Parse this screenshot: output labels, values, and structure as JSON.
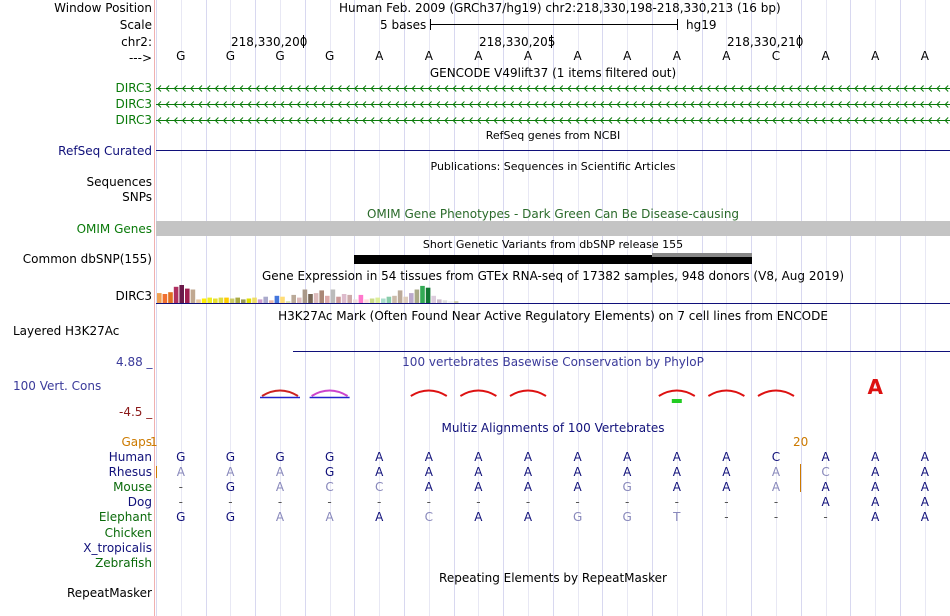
{
  "header": {
    "window_position_label": "Window Position",
    "window_position_value": "Human Feb. 2009 (GRCh37/hg19)   chr2:218,330,198-218,330,213 (16 bp)",
    "scale_label": "Scale",
    "scale_value": "5 bases",
    "scale_assembly": "hg19",
    "chrom_label": "chr2:",
    "coord_ticks": [
      "218,330,200",
      "218,330,205",
      "218,330,210"
    ],
    "strand_label": "--->"
  },
  "reference_bases": [
    "G",
    "G",
    "G",
    "G",
    "A",
    "A",
    "A",
    "A",
    "A",
    "A",
    "A",
    "A",
    "C",
    "A",
    "A",
    "A"
  ],
  "tracks": {
    "gencode": {
      "title": "GENCODE V49lift37 (1 items filtered out)",
      "items": [
        "DIRC3",
        "DIRC3",
        "DIRC3"
      ]
    },
    "refseq": {
      "title": "RefSeq genes from NCBI",
      "label": "RefSeq Curated"
    },
    "publications": {
      "title": "Publications: Sequences in Scientific Articles",
      "labels": [
        "Sequences",
        "SNPs"
      ]
    },
    "omim": {
      "title": "OMIM Gene Phenotypes - Dark Green Can Be Disease-causing",
      "label": "OMIM Genes"
    },
    "dbsnp": {
      "title": "Short Genetic Variants from dbSNP release 155",
      "label": "Common dbSNP(155)"
    },
    "gtex": {
      "title": "Gene Expression in 54 tissues from GTEx RNA-seq of 17382 samples, 948 donors (V8, Aug 2019)",
      "label": "DIRC3",
      "bars": [
        {
          "c": "#f0a050",
          "v": 0.55
        },
        {
          "c": "#f07030",
          "v": 0.5
        },
        {
          "c": "#e07020",
          "v": 0.6
        },
        {
          "c": "#b03060",
          "v": 0.9
        },
        {
          "c": "#6a1a4a",
          "v": 1.0
        },
        {
          "c": "#a02050",
          "v": 0.8
        },
        {
          "c": "#c0a890",
          "v": 0.75
        },
        {
          "c": "#e8c8a0",
          "v": 0.2
        },
        {
          "c": "#ffee00",
          "v": 0.25
        },
        {
          "c": "#eeee20",
          "v": 0.3
        },
        {
          "c": "#e8e030",
          "v": 0.25
        },
        {
          "c": "#dddd40",
          "v": 0.3
        },
        {
          "c": "#ffcc00",
          "v": 0.3
        },
        {
          "c": "#cccc66",
          "v": 0.25
        },
        {
          "c": "#aaaa44",
          "v": 0.3
        },
        {
          "c": "#999955",
          "v": 0.2
        },
        {
          "c": "#dddd00",
          "v": 0.25
        },
        {
          "c": "#eedd66",
          "v": 0.3
        },
        {
          "c": "#cc99cc",
          "v": 0.2
        },
        {
          "c": "#aaaacc",
          "v": 0.35
        },
        {
          "c": "#eebbaa",
          "v": 0.15
        },
        {
          "c": "#4477dd",
          "v": 0.4
        },
        {
          "c": "#ffdd77",
          "v": 0.35
        },
        {
          "c": "#dde0aa",
          "v": 0.1
        },
        {
          "c": "#bbaa99",
          "v": 0.45
        },
        {
          "c": "#ddbbbb",
          "v": 0.3
        },
        {
          "c": "#aa9988",
          "v": 0.75
        },
        {
          "c": "#776655",
          "v": 0.5
        },
        {
          "c": "#ddbbbb",
          "v": 0.55
        },
        {
          "c": "#aa8877",
          "v": 0.7
        },
        {
          "c": "#ddaaaa",
          "v": 0.4
        },
        {
          "c": "#bbbbbb",
          "v": 0.75
        },
        {
          "c": "#cc9999",
          "v": 0.35
        },
        {
          "c": "#ddbbcc",
          "v": 0.5
        },
        {
          "c": "#ccaaaa",
          "v": 0.45
        },
        {
          "c": "#eedddd",
          "v": 0.2
        },
        {
          "c": "#ff77cc",
          "v": 0.45
        },
        {
          "c": "#ffdddd",
          "v": 0.2
        },
        {
          "c": "#ccdd88",
          "v": 0.25
        },
        {
          "c": "#ddee99",
          "v": 0.3
        },
        {
          "c": "#aaddcc",
          "v": 0.25
        },
        {
          "c": "#88ccaa",
          "v": 0.35
        },
        {
          "c": "#ccbbaa",
          "v": 0.4
        },
        {
          "c": "#bbaa99",
          "v": 0.7
        },
        {
          "c": "#ddccbb",
          "v": 0.35
        },
        {
          "c": "#bbaacc",
          "v": 0.55
        },
        {
          "c": "#aaaa88",
          "v": 0.75
        },
        {
          "c": "#33aa55",
          "v": 0.95
        },
        {
          "c": "#117733",
          "v": 0.85
        },
        {
          "c": "#ddccdd",
          "v": 0.4
        },
        {
          "c": "#ccbbcc",
          "v": 0.2
        },
        {
          "c": "#dddddd",
          "v": 0.15
        },
        {
          "c": "#eeeeee",
          "v": 0.1
        },
        {
          "c": "#ccccaa",
          "v": 0.1
        }
      ]
    },
    "h3k27ac": {
      "title": "H3K27Ac Mark (Often Found Near Active Regulatory Elements) on 7 cell lines from ENCODE",
      "label": "Layered H3K27Ac"
    },
    "phylop": {
      "title": "100 vertebrates Basewise Conservation by PhyloP",
      "label": "100 Vert. Cons",
      "ymax": "4.88 _",
      "ymin": "-4.5 _"
    },
    "multiz": {
      "title": "Multiz Alignments of 100 Vertebrates",
      "gaps_label": "Gaps",
      "gap_markers": [
        "1",
        "20"
      ],
      "species": [
        {
          "name": "Human",
          "seq": [
            "G",
            "G",
            "G",
            "G",
            "A",
            "A",
            "A",
            "A",
            "A",
            "A",
            "A",
            "A",
            "C",
            "A",
            "A",
            "A"
          ]
        },
        {
          "name": "Rhesus",
          "seq": [
            "A",
            "A",
            "A",
            "G",
            "A",
            "A",
            "A",
            "A",
            "A",
            "A",
            "A",
            "A",
            "A",
            "C",
            "A",
            "A"
          ]
        },
        {
          "name": "Mouse",
          "seq": [
            "-",
            "G",
            "A",
            "C",
            "C",
            "A",
            "A",
            "A",
            "A",
            "G",
            "A",
            "A",
            "A",
            "A",
            "A",
            "A"
          ]
        },
        {
          "name": "Dog",
          "seq": [
            "-",
            "-",
            "-",
            "-",
            "-",
            "-",
            "-",
            "-",
            "-",
            "-",
            "-",
            "-",
            "-",
            "A",
            "A",
            "A"
          ]
        },
        {
          "name": "Elephant",
          "seq": [
            "G",
            "G",
            "A",
            "A",
            "A",
            "C",
            "A",
            "A",
            "G",
            "G",
            "T",
            "-",
            "-",
            "-",
            "A",
            "A"
          ]
        },
        {
          "name": "Chicken",
          "seq": []
        },
        {
          "name": "X_tropicalis",
          "seq": []
        },
        {
          "name": "Zebrafish",
          "seq": []
        }
      ]
    },
    "repeatmasker": {
      "title": "Repeating Elements by RepeatMasker",
      "label": "RepeatMasker"
    }
  },
  "colors": {
    "green_label": "#0a7a0a",
    "navy_label": "#10107a",
    "omim_title": "#2a6a2a",
    "phylop_title": "#3a3a9a",
    "phylop_max": "#3a3a9a",
    "phylop_min": "#8b1a1a",
    "gaps": "#cc7a00",
    "match_base": "#10107a",
    "mismatch_base": "#8888bb",
    "conservation_red": "#dd1111",
    "conservation_blue": "#2222cc"
  }
}
